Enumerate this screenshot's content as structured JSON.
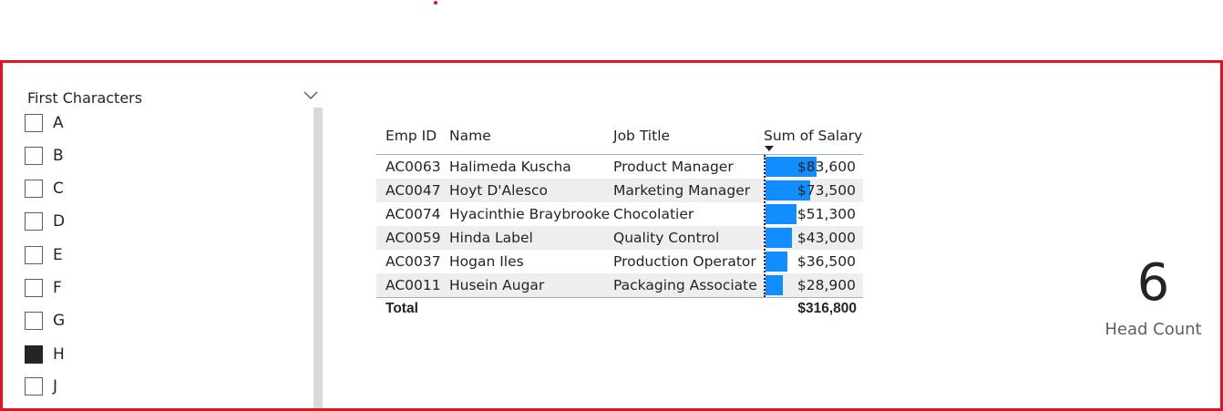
{
  "slicer": {
    "title": "First Characters",
    "items": [
      {
        "label": "A",
        "checked": false
      },
      {
        "label": "B",
        "checked": false
      },
      {
        "label": "C",
        "checked": false
      },
      {
        "label": "D",
        "checked": false
      },
      {
        "label": "E",
        "checked": false
      },
      {
        "label": "F",
        "checked": false
      },
      {
        "label": "G",
        "checked": false
      },
      {
        "label": "H",
        "checked": true
      },
      {
        "label": "J",
        "checked": false
      }
    ]
  },
  "table": {
    "headers": {
      "emp_id": "Emp ID",
      "name": "Name",
      "job_title": "Job Title",
      "salary": "Sum of Salary"
    },
    "rows": [
      {
        "emp_id": "AC0063",
        "name": "Halimeda Kuscha",
        "job_title": "Product Manager",
        "salary": "$83,600",
        "salary_value": 83600
      },
      {
        "emp_id": "AC0047",
        "name": "Hoyt D'Alesco",
        "job_title": "Marketing Manager",
        "salary": "$73,500",
        "salary_value": 73500
      },
      {
        "emp_id": "AC0074",
        "name": "Hyacinthie Braybrooke",
        "job_title": "Chocolatier",
        "salary": "$51,300",
        "salary_value": 51300
      },
      {
        "emp_id": "AC0059",
        "name": "Hinda Label",
        "job_title": "Quality Control",
        "salary": "$43,000",
        "salary_value": 43000
      },
      {
        "emp_id": "AC0037",
        "name": "Hogan Iles",
        "job_title": "Production Operator",
        "salary": "$36,500",
        "salary_value": 36500
      },
      {
        "emp_id": "AC0011",
        "name": "Husein Augar",
        "job_title": "Packaging Associate",
        "salary": "$28,900",
        "salary_value": 28900
      }
    ],
    "total_label": "Total",
    "total_value": "$316,800",
    "bar_color": "#118dff"
  },
  "card": {
    "value": "6",
    "label": "Head Count"
  },
  "colors": {
    "frame_border": "#e81123",
    "alt_row": "#eeeeee",
    "text": "#252423"
  }
}
